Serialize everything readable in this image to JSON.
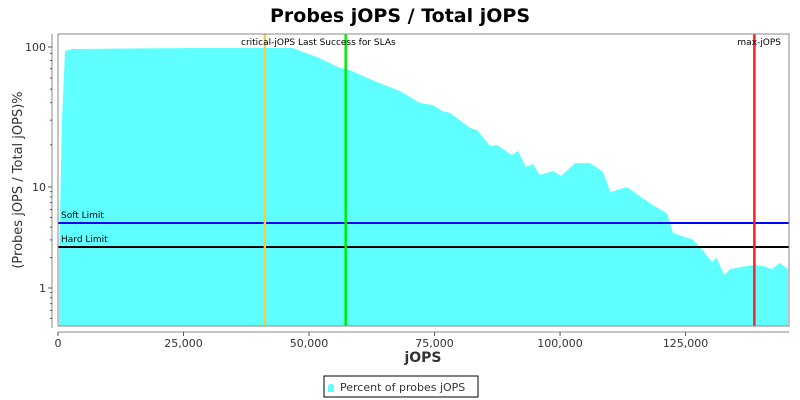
{
  "chart_data": {
    "type": "area",
    "title": "Probes jOPS / Total jOPS",
    "xlabel": "jOPS",
    "ylabel": "(Probes jOPS / Total jOPS)%",
    "xlim": [
      0,
      145600
    ],
    "ylim": [
      0.42,
      124
    ],
    "yscale": "log",
    "x_ticks": [
      0,
      25000,
      50000,
      75000,
      100000,
      125000
    ],
    "x_tick_labels": [
      "0",
      "25,000",
      "50,000",
      "75,000",
      "100,000",
      "125,000"
    ],
    "y_ticks": [
      1,
      10,
      100
    ],
    "y_tick_labels": [
      "1",
      "10",
      "100"
    ],
    "grid": false,
    "legend_position": "bottom",
    "series": [
      {
        "name": "Percent of probes jOPS",
        "color": "#5fffff",
        "x": [
          200,
          800,
          1400,
          3000,
          28300,
          46800,
          48800,
          51600,
          56200,
          57600,
          63500,
          68100,
          72100,
          74700,
          76500,
          78100,
          82100,
          83500,
          86100,
          87500,
          90400,
          91600,
          93200,
          94600,
          96000,
          98600,
          100200,
          103000,
          106000,
          108600,
          110000,
          113300,
          118500,
          121300,
          122500,
          126500,
          128300,
          130300,
          131100,
          132700,
          133900,
          138400,
          140400,
          142200,
          143800,
          145400
        ],
        "y": [
          2,
          30,
          93.6,
          96.8,
          98.4,
          98.4,
          92.1,
          84.8,
          70.8,
          69.6,
          56.2,
          48.5,
          39.8,
          38.5,
          34.9,
          33.8,
          26.4,
          25.5,
          19.6,
          20.0,
          16.9,
          18.1,
          13.9,
          14.6,
          12.2,
          13.0,
          12.0,
          14.8,
          14.8,
          12.8,
          8.9,
          10,
          6.6,
          5.5,
          3.5,
          3.0,
          2.4,
          1.8,
          2.0,
          1.35,
          1.54,
          1.69,
          1.65,
          1.54,
          1.77,
          1.54
        ]
      }
    ],
    "vertical_markers": [
      {
        "name": "critical-jOPS",
        "x": 41200,
        "color": "#f0d040"
      },
      {
        "name": "Last Success for SLAs",
        "x": 57300,
        "color": "#00ee00"
      },
      {
        "name": "max-jOPS",
        "x": 138700,
        "color": "#ff2020"
      }
    ],
    "horizontal_markers": [
      {
        "name": "Soft Limit",
        "y": 4.4,
        "color": "#0000ff"
      },
      {
        "name": "Hard Limit",
        "y": 2.55,
        "color": "#000000"
      }
    ],
    "annotations": {
      "critical_label": "critical-jOPS Last Success for SLAs",
      "max_label": "max-jOPS",
      "soft_label": "Soft Limit",
      "hard_label": "Hard Limit"
    }
  }
}
